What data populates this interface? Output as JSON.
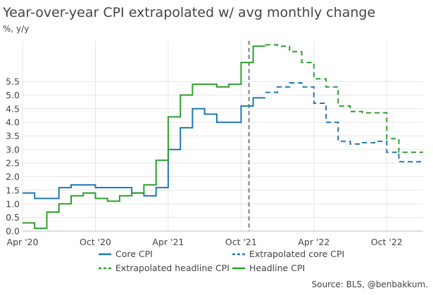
{
  "chart_data": {
    "type": "line",
    "title": "Year-over-year CPI extrapolated w/ avg monthly change",
    "ylabel": "%, y/y",
    "source": "Source: BLS, @benbakkum.",
    "x_ticks": [
      "Apr '20",
      "Oct '20",
      "Apr '21",
      "Oct '21",
      "Apr '22",
      "Oct '22"
    ],
    "y_ticks": [
      "0.0",
      "0.5",
      "1.0",
      "1.5",
      "2.0",
      "2.5",
      "3.0",
      "3.5",
      "4.0",
      "4.5",
      "5.0",
      "5.5"
    ],
    "xlim": [
      "2020-04",
      "2023-01"
    ],
    "ylim": [
      0,
      7
    ],
    "step": true,
    "grid": true,
    "vline": "2021-11",
    "legend_position": "bottom",
    "x": [
      "2020-04",
      "2020-05",
      "2020-06",
      "2020-07",
      "2020-08",
      "2020-09",
      "2020-10",
      "2020-11",
      "2020-12",
      "2021-01",
      "2021-02",
      "2021-03",
      "2021-04",
      "2021-05",
      "2021-06",
      "2021-07",
      "2021-08",
      "2021-09",
      "2021-10",
      "2021-11",
      "2021-12",
      "2022-01",
      "2022-02",
      "2022-03",
      "2022-04",
      "2022-05",
      "2022-06",
      "2022-07",
      "2022-08",
      "2022-09",
      "2022-10",
      "2022-11",
      "2022-12",
      "2023-01"
    ],
    "series": [
      {
        "name": "Core CPI",
        "color": "#1f77b4",
        "dash": false,
        "x": [
          "2020-04",
          "2020-05",
          "2020-06",
          "2020-07",
          "2020-08",
          "2020-09",
          "2020-10",
          "2020-11",
          "2020-12",
          "2021-01",
          "2021-02",
          "2021-03",
          "2021-04",
          "2021-05",
          "2021-06",
          "2021-07",
          "2021-08",
          "2021-09",
          "2021-10",
          "2021-11"
        ],
        "values": [
          1.4,
          1.2,
          1.2,
          1.6,
          1.7,
          1.7,
          1.6,
          1.6,
          1.6,
          1.4,
          1.3,
          1.6,
          3.0,
          3.8,
          4.5,
          4.3,
          4.0,
          4.0,
          4.6,
          4.9
        ]
      },
      {
        "name": "Extrapolated core CPI",
        "color": "#1f77b4",
        "dash": true,
        "x": [
          "2021-12",
          "2022-01",
          "2022-02",
          "2022-03",
          "2022-04",
          "2022-05",
          "2022-06",
          "2022-07",
          "2022-08",
          "2022-09",
          "2022-10",
          "2022-11",
          "2022-12",
          "2023-01"
        ],
        "values": [
          5.1,
          5.3,
          5.45,
          5.3,
          4.7,
          4.0,
          3.3,
          3.2,
          3.25,
          3.3,
          2.9,
          2.55,
          2.55,
          2.55
        ]
      },
      {
        "name": "Extrapolated headline CPI",
        "color": "#2ca02c",
        "dash": true,
        "x": [
          "2021-12",
          "2022-01",
          "2022-02",
          "2022-03",
          "2022-04",
          "2022-05",
          "2022-06",
          "2022-07",
          "2022-08",
          "2022-09",
          "2022-10",
          "2022-11",
          "2022-12",
          "2023-01"
        ],
        "values": [
          6.85,
          6.8,
          6.6,
          6.2,
          5.6,
          5.3,
          4.6,
          4.4,
          4.35,
          4.35,
          3.4,
          2.9,
          2.9,
          2.9
        ]
      },
      {
        "name": "Headline CPI",
        "color": "#2ca02c",
        "dash": false,
        "x": [
          "2020-04",
          "2020-05",
          "2020-06",
          "2020-07",
          "2020-08",
          "2020-09",
          "2020-10",
          "2020-11",
          "2020-12",
          "2021-01",
          "2021-02",
          "2021-03",
          "2021-04",
          "2021-05",
          "2021-06",
          "2021-07",
          "2021-08",
          "2021-09",
          "2021-10",
          "2021-11"
        ],
        "values": [
          0.3,
          0.1,
          0.7,
          1.0,
          1.3,
          1.4,
          1.2,
          1.1,
          1.3,
          1.4,
          1.7,
          2.6,
          4.2,
          5.0,
          5.4,
          5.4,
          5.3,
          5.4,
          6.2,
          6.8
        ]
      }
    ],
    "legend": [
      {
        "label": "Core CPI",
        "color": "#1f77b4",
        "dash": false
      },
      {
        "label": "Extrapolated core CPI",
        "color": "#1f77b4",
        "dash": true
      },
      {
        "label": "Extrapolated headline CPI",
        "color": "#2ca02c",
        "dash": true
      },
      {
        "label": "Headline CPI",
        "color": "#2ca02c",
        "dash": false
      }
    ]
  }
}
